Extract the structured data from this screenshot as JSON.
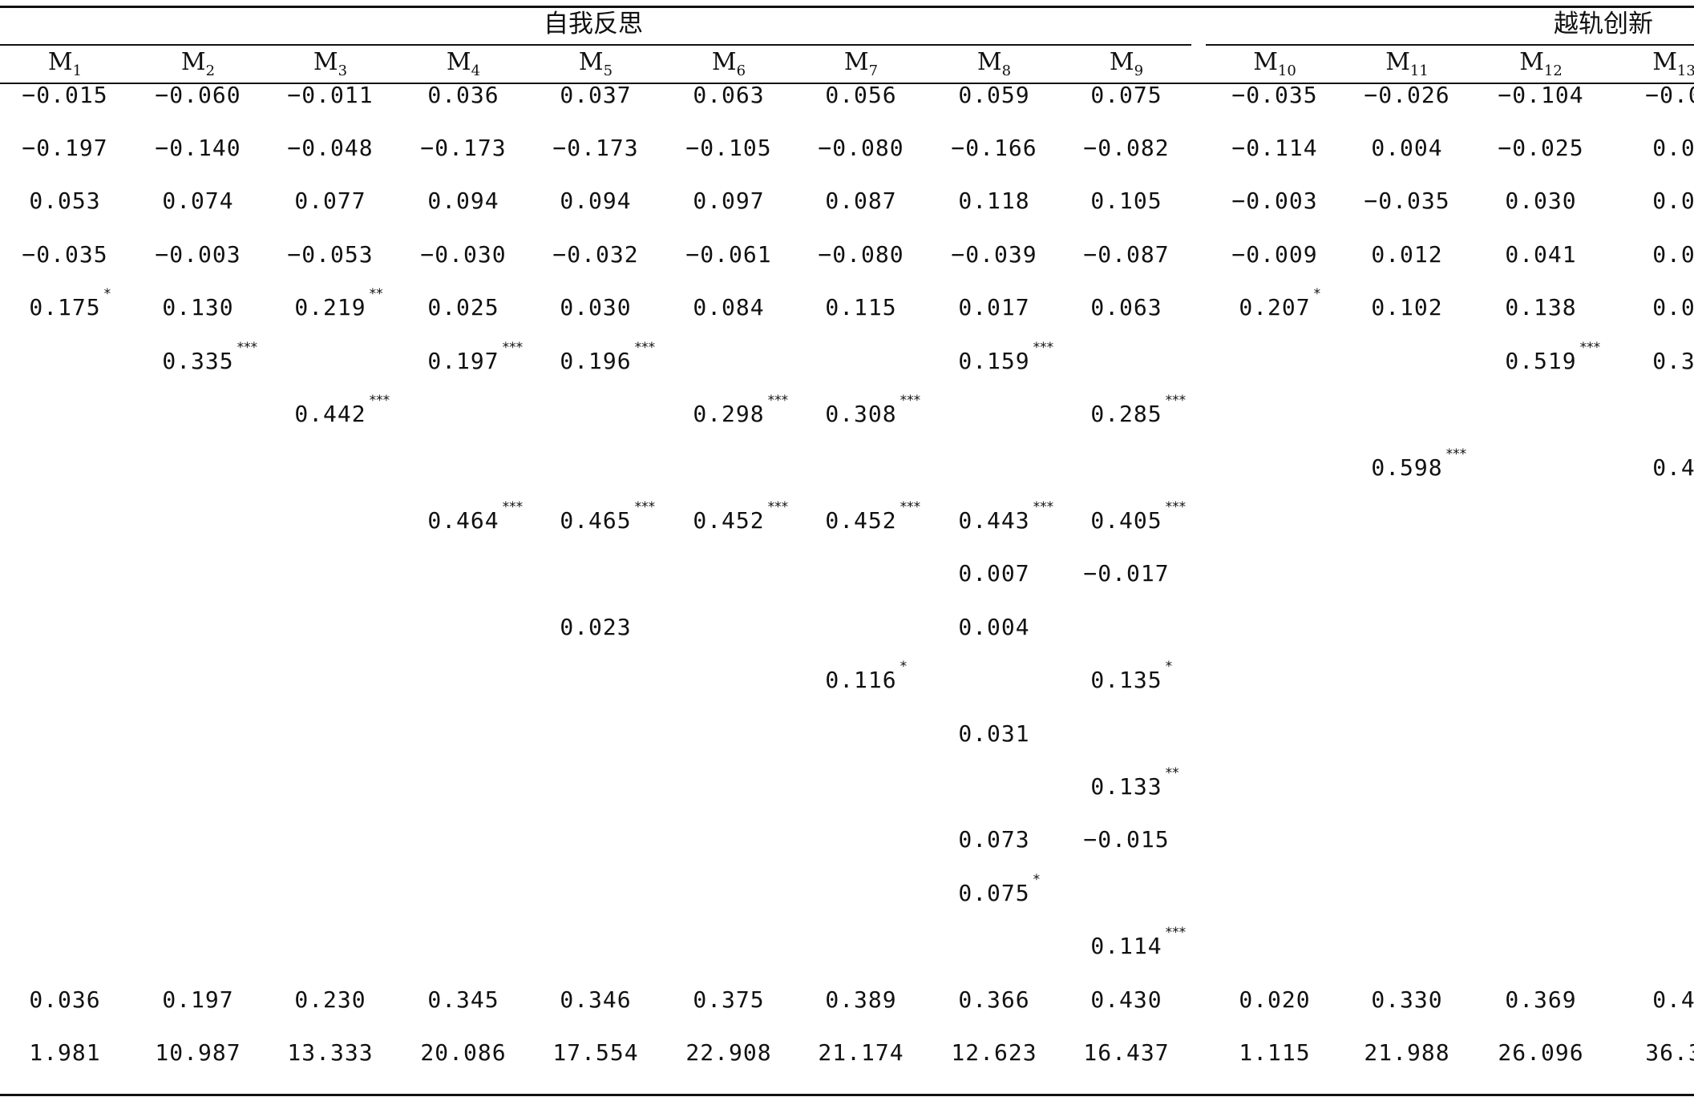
{
  "group_labels": {
    "self_reflection": "自我反思",
    "deviant_innovation": "越轨创新"
  },
  "models": [
    "M1",
    "M2",
    "M3",
    "M4",
    "M5",
    "M6",
    "M7",
    "M8",
    "M9",
    "M10",
    "M11",
    "M12",
    "M13"
  ],
  "model_parts": [
    {
      "base": "M",
      "sub": "1"
    },
    {
      "base": "M",
      "sub": "2"
    },
    {
      "base": "M",
      "sub": "3"
    },
    {
      "base": "M",
      "sub": "4"
    },
    {
      "base": "M",
      "sub": "5"
    },
    {
      "base": "M",
      "sub": "6"
    },
    {
      "base": "M",
      "sub": "7"
    },
    {
      "base": "M",
      "sub": "8"
    },
    {
      "base": "M",
      "sub": "9"
    },
    {
      "base": "M",
      "sub": "10"
    },
    {
      "base": "M",
      "sub": "11"
    },
    {
      "base": "M",
      "sub": "12"
    },
    {
      "base": "M",
      "sub": "13"
    }
  ],
  "rows": [
    {
      "cells": [
        {
          "col": 0,
          "text": "−0.015"
        },
        {
          "col": 1,
          "text": "−0.060"
        },
        {
          "col": 2,
          "text": "−0.011"
        },
        {
          "col": 3,
          "text": "0.036"
        },
        {
          "col": 4,
          "text": "0.037"
        },
        {
          "col": 5,
          "text": "0.063"
        },
        {
          "col": 6,
          "text": "0.056"
        },
        {
          "col": 7,
          "text": "0.059"
        },
        {
          "col": 8,
          "text": "0.075"
        },
        {
          "col": 9,
          "text": "−0.035"
        },
        {
          "col": 10,
          "text": "−0.026"
        },
        {
          "col": 11,
          "text": "−0.104"
        },
        {
          "col": 12,
          "text": "−0.0"
        }
      ]
    },
    {
      "cells": [
        {
          "col": 0,
          "text": "−0.197"
        },
        {
          "col": 1,
          "text": "−0.140"
        },
        {
          "col": 2,
          "text": "−0.048"
        },
        {
          "col": 3,
          "text": "−0.173"
        },
        {
          "col": 4,
          "text": "−0.173"
        },
        {
          "col": 5,
          "text": "−0.105"
        },
        {
          "col": 6,
          "text": "−0.080"
        },
        {
          "col": 7,
          "text": "−0.166"
        },
        {
          "col": 8,
          "text": "−0.082"
        },
        {
          "col": 9,
          "text": "−0.114"
        },
        {
          "col": 10,
          "text": "0.004"
        },
        {
          "col": 11,
          "text": "−0.025"
        },
        {
          "col": 12,
          "text": "0.0"
        }
      ]
    },
    {
      "cells": [
        {
          "col": 0,
          "text": "0.053"
        },
        {
          "col": 1,
          "text": "0.074"
        },
        {
          "col": 2,
          "text": "0.077"
        },
        {
          "col": 3,
          "text": "0.094"
        },
        {
          "col": 4,
          "text": "0.094"
        },
        {
          "col": 5,
          "text": "0.097"
        },
        {
          "col": 6,
          "text": "0.087"
        },
        {
          "col": 7,
          "text": "0.118"
        },
        {
          "col": 8,
          "text": "0.105"
        },
        {
          "col": 9,
          "text": "−0.003"
        },
        {
          "col": 10,
          "text": "−0.035"
        },
        {
          "col": 11,
          "text": "0.030"
        },
        {
          "col": 12,
          "text": "0.0"
        }
      ]
    },
    {
      "cells": [
        {
          "col": 0,
          "text": "−0.035"
        },
        {
          "col": 1,
          "text": "−0.003"
        },
        {
          "col": 2,
          "text": "−0.053"
        },
        {
          "col": 3,
          "text": "−0.030"
        },
        {
          "col": 4,
          "text": "−0.032"
        },
        {
          "col": 5,
          "text": "−0.061"
        },
        {
          "col": 6,
          "text": "−0.080"
        },
        {
          "col": 7,
          "text": "−0.039"
        },
        {
          "col": 8,
          "text": "−0.087"
        },
        {
          "col": 9,
          "text": "−0.009"
        },
        {
          "col": 10,
          "text": "0.012"
        },
        {
          "col": 11,
          "text": "0.041"
        },
        {
          "col": 12,
          "text": "0.0"
        }
      ]
    },
    {
      "cells": [
        {
          "col": 0,
          "text": "0.175",
          "sig": "*"
        },
        {
          "col": 1,
          "text": "0.130"
        },
        {
          "col": 2,
          "text": "0.219",
          "sig": "**"
        },
        {
          "col": 3,
          "text": "0.025"
        },
        {
          "col": 4,
          "text": "0.030"
        },
        {
          "col": 5,
          "text": "0.084"
        },
        {
          "col": 6,
          "text": "0.115"
        },
        {
          "col": 7,
          "text": "0.017"
        },
        {
          "col": 8,
          "text": "0.063"
        },
        {
          "col": 9,
          "text": "0.207",
          "sig": "*"
        },
        {
          "col": 10,
          "text": "0.102"
        },
        {
          "col": 11,
          "text": "0.138"
        },
        {
          "col": 12,
          "text": "0.0"
        }
      ]
    },
    {
      "cells": [
        {
          "col": 1,
          "text": "0.335",
          "sig": "***"
        },
        {
          "col": 3,
          "text": "0.197",
          "sig": "***"
        },
        {
          "col": 4,
          "text": "0.196",
          "sig": "***"
        },
        {
          "col": 7,
          "text": "0.159",
          "sig": "***"
        },
        {
          "col": 11,
          "text": "0.519",
          "sig": "***"
        },
        {
          "col": 12,
          "text": "0.3"
        }
      ]
    },
    {
      "cells": [
        {
          "col": 2,
          "text": "0.442",
          "sig": "***"
        },
        {
          "col": 5,
          "text": "0.298",
          "sig": "***"
        },
        {
          "col": 6,
          "text": "0.308",
          "sig": "***"
        },
        {
          "col": 8,
          "text": "0.285",
          "sig": "***"
        }
      ]
    },
    {
      "cells": [
        {
          "col": 10,
          "text": "0.598",
          "sig": "***"
        },
        {
          "col": 12,
          "text": "0.4"
        }
      ]
    },
    {
      "cells": [
        {
          "col": 3,
          "text": "0.464",
          "sig": "***"
        },
        {
          "col": 4,
          "text": "0.465",
          "sig": "***"
        },
        {
          "col": 5,
          "text": "0.452",
          "sig": "***"
        },
        {
          "col": 6,
          "text": "0.452",
          "sig": "***"
        },
        {
          "col": 7,
          "text": "0.443",
          "sig": "***"
        },
        {
          "col": 8,
          "text": "0.405",
          "sig": "***"
        }
      ]
    },
    {
      "cells": [
        {
          "col": 7,
          "text": "0.007"
        },
        {
          "col": 8,
          "text": "−0.017"
        }
      ]
    },
    {
      "cells": [
        {
          "col": 4,
          "text": "0.023"
        },
        {
          "col": 7,
          "text": "0.004"
        }
      ]
    },
    {
      "cells": [
        {
          "col": 6,
          "text": "0.116",
          "sig": "*"
        },
        {
          "col": 8,
          "text": "0.135",
          "sig": "*"
        }
      ]
    },
    {
      "cells": [
        {
          "col": 7,
          "text": "0.031"
        }
      ]
    },
    {
      "cells": [
        {
          "col": 8,
          "text": "0.133",
          "sig": "**"
        }
      ]
    },
    {
      "cells": [
        {
          "col": 7,
          "text": "0.073"
        },
        {
          "col": 8,
          "text": "−0.015"
        }
      ]
    },
    {
      "cells": [
        {
          "col": 7,
          "text": "0.075",
          "sig": "*"
        }
      ]
    },
    {
      "cells": [
        {
          "col": 8,
          "text": "0.114",
          "sig": "***"
        }
      ]
    },
    {
      "cells": [
        {
          "col": 0,
          "text": "0.036"
        },
        {
          "col": 1,
          "text": "0.197"
        },
        {
          "col": 2,
          "text": "0.230"
        },
        {
          "col": 3,
          "text": "0.345"
        },
        {
          "col": 4,
          "text": "0.346"
        },
        {
          "col": 5,
          "text": "0.375"
        },
        {
          "col": 6,
          "text": "0.389"
        },
        {
          "col": 7,
          "text": "0.366"
        },
        {
          "col": 8,
          "text": "0.430"
        },
        {
          "col": 9,
          "text": "0.020"
        },
        {
          "col": 10,
          "text": "0.330"
        },
        {
          "col": 11,
          "text": "0.369"
        },
        {
          "col": 12,
          "text": "0.4"
        }
      ]
    },
    {
      "cells": [
        {
          "col": 0,
          "text": "1.981"
        },
        {
          "col": 1,
          "text": "10.987"
        },
        {
          "col": 2,
          "text": "13.333"
        },
        {
          "col": 3,
          "text": "20.086"
        },
        {
          "col": 4,
          "text": "17.554"
        },
        {
          "col": 5,
          "text": "22.908"
        },
        {
          "col": 6,
          "text": "21.174"
        },
        {
          "col": 7,
          "text": "12.623"
        },
        {
          "col": 8,
          "text": "16.437"
        },
        {
          "col": 9,
          "text": "1.115"
        },
        {
          "col": 10,
          "text": "21.988"
        },
        {
          "col": 11,
          "text": "26.096"
        },
        {
          "col": 12,
          "text": "36.3"
        }
      ]
    }
  ]
}
